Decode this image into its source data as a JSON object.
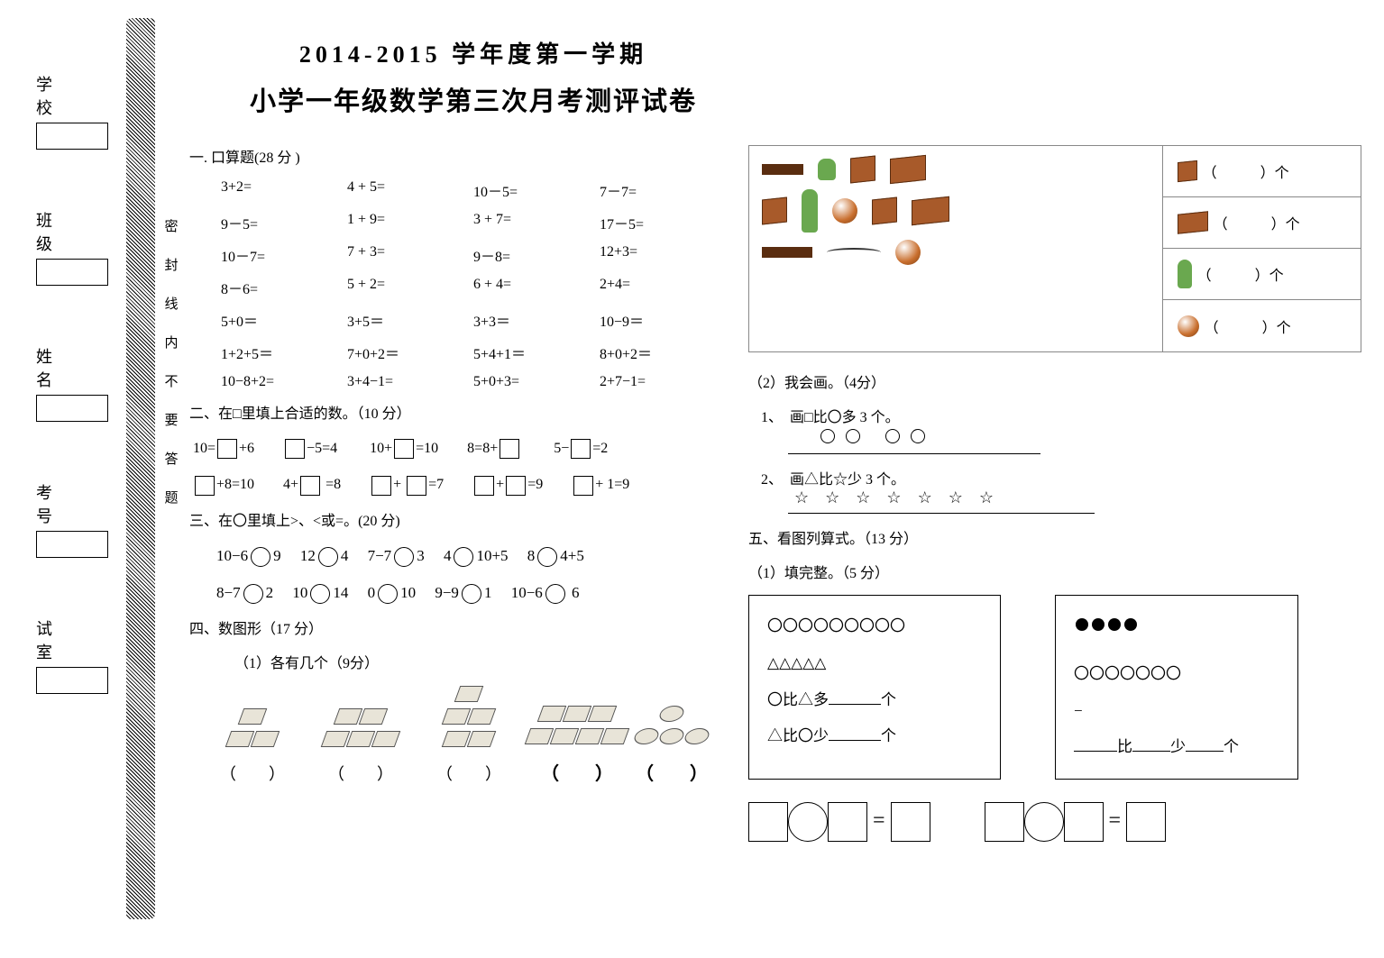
{
  "side_labels": [
    {
      "text": "学　校"
    },
    {
      "text": "班　级"
    },
    {
      "text": "姓　名"
    },
    {
      "text": "考 号"
    },
    {
      "text": "试 室"
    }
  ],
  "seal_chars": [
    "密",
    "封",
    "线",
    "内",
    "不",
    "要",
    "答",
    "题"
  ],
  "title1": "2014-2015 学年度第一学期",
  "title2": "小学一年级数学第三次月考测评试卷",
  "sec1": "一. 口算题(28 分 )",
  "mental": [
    [
      "3+2=",
      "4 + 5=",
      "10－5=",
      "7－7="
    ],
    [
      "9－5=",
      "1 + 9=",
      "3 + 7=",
      "17－5="
    ],
    [
      "10－7=",
      "7 + 3=",
      "9－8=",
      "12+3="
    ],
    [
      "8－6=",
      "5 + 2=",
      "6 + 4=",
      "2+4="
    ],
    [
      "5+0＝",
      "3+5＝",
      "3+3＝",
      "10−9＝"
    ],
    [
      "1+2+5＝",
      "7+0+2＝",
      "5+4+1＝",
      "8+0+2＝"
    ],
    [
      "10−8+2=",
      "3+4−1=",
      "5+0+3=",
      "2+7−1="
    ]
  ],
  "sec2": "二、在□里填上合适的数。（10 分）",
  "fill": {
    "row1": [
      "10=",
      "+6　　",
      "−5=4　　 10+",
      "=10　　8=8+",
      "　　 5−",
      "=2"
    ],
    "row2": [
      "+8=10　　4+",
      " =8　　",
      "+ ",
      "=7　　",
      "+",
      "=9　　",
      "+ 1=9"
    ]
  },
  "sec3": "三、在〇里填上>、<或=。(20 分)",
  "compare": [
    [
      "10−6",
      "9",
      "12",
      "4",
      "7−7",
      "3",
      "4",
      "10+5",
      "8",
      "4+5"
    ],
    [
      "8−7",
      "2",
      "10",
      "14",
      "0",
      "10",
      "9−9",
      "1",
      "10−6",
      " 6"
    ]
  ],
  "sec4": "四、数图形（17 分）",
  "sec4_1": "（1）各有几个（9分）",
  "paren_label": "（　　）",
  "sec4_2": "（2）我会画。（4分）",
  "draw1": "1、　画□比〇多 3 个。",
  "draw2": "2、　画△比☆少 3 个。",
  "count_label": "（　　　）个",
  "sec5": "五、看图列算式。（13 分）",
  "sec5_1": "（1）填完整。（5 分）",
  "box1": {
    "circles": 9,
    "triangles": 5,
    "l1": "〇比△多",
    "l2": "△比〇少",
    "unit": "个"
  },
  "box2": {
    "dots": 4,
    "open_circles": 7,
    "l1a": "比",
    "l1b": "少",
    "unit": "个"
  }
}
